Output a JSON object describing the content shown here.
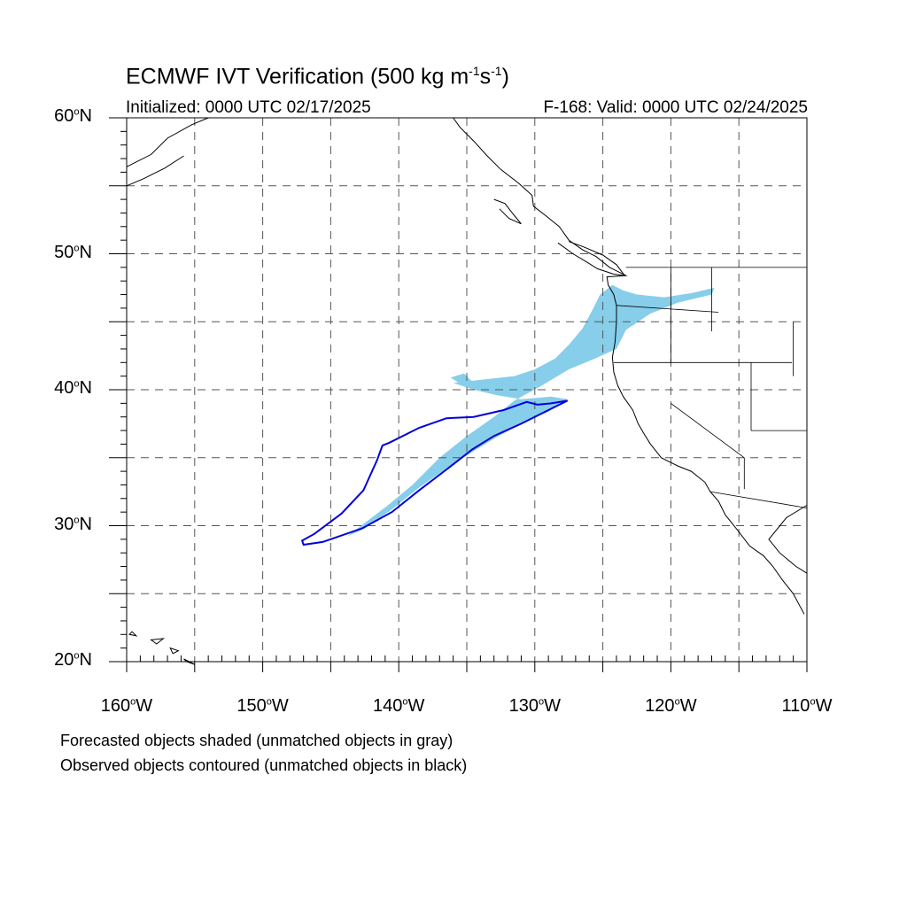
{
  "title": {
    "prefix": "ECMWF IVT Verification (500 kg m",
    "exp1": "-1",
    "mid": "s",
    "exp2": "-1",
    "suffix": ")"
  },
  "initialized_label": "Initialized: 0000 UTC 02/17/2025",
  "valid_label": "F-168: Valid: 0000 UTC 02/24/2025",
  "map": {
    "extent": {
      "lon_min": -160,
      "lon_max": -110,
      "lat_min": 20,
      "lat_max": 60
    },
    "gridlines": "dashed every 5 degrees",
    "colors": {
      "forecast_fill": "#87ceeb",
      "observed_contour": "#0000dd",
      "coastline": "#000000",
      "grid": "#555555"
    },
    "lat_labels": [
      {
        "deg": "60",
        "suffix": "N"
      },
      {
        "deg": "50",
        "suffix": "N"
      },
      {
        "deg": "40",
        "suffix": "N"
      },
      {
        "deg": "30",
        "suffix": "N"
      },
      {
        "deg": "20",
        "suffix": "N"
      }
    ],
    "lon_labels": [
      {
        "deg": "160",
        "suffix": "W"
      },
      {
        "deg": "150",
        "suffix": "W"
      },
      {
        "deg": "140",
        "suffix": "W"
      },
      {
        "deg": "130",
        "suffix": "W"
      },
      {
        "deg": "120",
        "suffix": "W"
      },
      {
        "deg": "110",
        "suffix": "W"
      }
    ],
    "forecast_object": {
      "description": "Forecasted object (shaded, matched)",
      "outline_lonlat": [
        [
          -143.8,
          29.2
        ],
        [
          -142.5,
          29.8
        ],
        [
          -140.5,
          31.2
        ],
        [
          -138.5,
          32.8
        ],
        [
          -136.5,
          34.2
        ],
        [
          -134.8,
          35.3
        ],
        [
          -133.0,
          36.4
        ],
        [
          -131.0,
          37.5
        ],
        [
          -129.0,
          38.4
        ],
        [
          -127.6,
          39.3
        ],
        [
          -128.8,
          39.5
        ],
        [
          -131.0,
          39.3
        ],
        [
          -132.8,
          39.6
        ],
        [
          -134.5,
          40.0
        ],
        [
          -136.0,
          40.5
        ],
        [
          -131.5,
          41.0
        ],
        [
          -130.0,
          41.5
        ],
        [
          -128.5,
          42.3
        ],
        [
          -127.5,
          43.3
        ],
        [
          -126.5,
          44.5
        ],
        [
          -125.8,
          45.8
        ],
        [
          -125.2,
          47.0
        ],
        [
          -124.3,
          47.7
        ],
        [
          -123.5,
          47.3
        ],
        [
          -122.5,
          47.0
        ],
        [
          -120.5,
          46.8
        ],
        [
          -118.5,
          47.1
        ],
        [
          -116.8,
          47.5
        ],
        [
          -117.0,
          47.0
        ],
        [
          -119.5,
          46.4
        ],
        [
          -121.5,
          45.6
        ],
        [
          -123.3,
          44.4
        ],
        [
          -124.0,
          43.0
        ],
        [
          -125.8,
          42.2
        ],
        [
          -127.5,
          41.5
        ],
        [
          -129.5,
          40.3
        ],
        [
          -131.5,
          39.2
        ],
        [
          -133.0,
          38.0
        ],
        [
          -135.0,
          36.6
        ],
        [
          -137.0,
          35.0
        ],
        [
          -139.0,
          33.0
        ],
        [
          -140.8,
          31.5
        ],
        [
          -142.5,
          30.2
        ]
      ]
    },
    "forecast_small_object": [
      [
        -136.2,
        40.9
      ],
      [
        -135.2,
        41.2
      ],
      [
        -134.6,
        40.6
      ],
      [
        -135.4,
        40.4
      ]
    ],
    "observed_object": {
      "description": "Observed object (contoured, matched)",
      "outline_lonlat": [
        [
          -147.1,
          28.9
        ],
        [
          -146.2,
          29.4
        ],
        [
          -144.2,
          30.9
        ],
        [
          -142.6,
          32.6
        ],
        [
          -141.6,
          34.8
        ],
        [
          -141.2,
          35.9
        ],
        [
          -140.7,
          36.1
        ],
        [
          -138.5,
          37.2
        ],
        [
          -136.5,
          37.9
        ],
        [
          -134.5,
          38.0
        ],
        [
          -132.3,
          38.5
        ],
        [
          -130.6,
          39.1
        ],
        [
          -129.8,
          38.9
        ],
        [
          -128.8,
          39.0
        ],
        [
          -127.6,
          39.2
        ],
        [
          -129.0,
          38.5
        ],
        [
          -131.0,
          37.5
        ],
        [
          -133.0,
          36.6
        ],
        [
          -134.6,
          35.6
        ],
        [
          -136.4,
          34.2
        ],
        [
          -138.5,
          32.6
        ],
        [
          -140.5,
          31.0
        ],
        [
          -142.7,
          29.8
        ],
        [
          -145.6,
          28.8
        ],
        [
          -147.0,
          28.6
        ]
      ]
    }
  },
  "notes": {
    "forecast": "Forecasted objects shaded (unmatched objects in gray)",
    "observed": "Observed objects contoured (unmatched objects in black)"
  }
}
